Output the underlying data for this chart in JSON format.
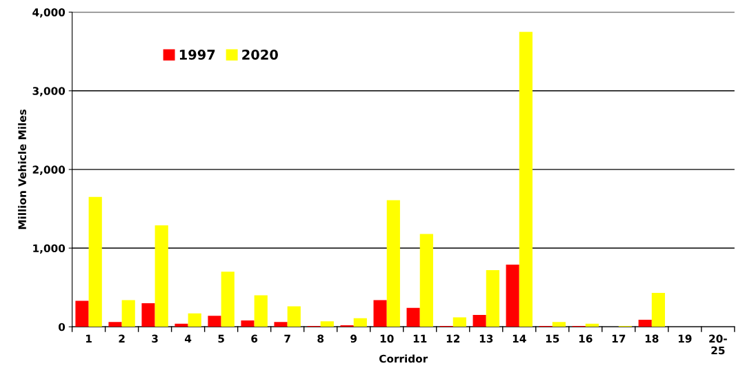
{
  "chart_data": {
    "type": "bar",
    "xlabel": "Corridor",
    "ylabel": "Million Vehicle Miles",
    "categories": [
      "1",
      "2",
      "3",
      "4",
      "5",
      "6",
      "7",
      "8",
      "9",
      "10",
      "11",
      "12",
      "13",
      "14",
      "15",
      "16",
      "17",
      "18",
      "19",
      "20-\n25"
    ],
    "series": [
      {
        "name": "1997",
        "color": "#ff0000",
        "values": [
          330,
          60,
          300,
          40,
          140,
          80,
          60,
          10,
          20,
          340,
          240,
          10,
          150,
          790,
          10,
          10,
          0,
          90,
          0,
          0
        ]
      },
      {
        "name": "2020",
        "color": "#ffff00",
        "values": [
          1650,
          340,
          1290,
          170,
          700,
          400,
          260,
          70,
          110,
          1610,
          1180,
          120,
          720,
          3750,
          60,
          40,
          10,
          430,
          0,
          0
        ]
      }
    ],
    "ylim": [
      0,
      4000
    ],
    "yticks": [
      {
        "value": 0,
        "label": "0"
      },
      {
        "value": 1000,
        "label": "1,000"
      },
      {
        "value": 2000,
        "label": "2,000"
      },
      {
        "value": 3000,
        "label": "3,000"
      },
      {
        "value": 4000,
        "label": "4,000"
      }
    ],
    "grid": "y",
    "legend": "top left"
  }
}
